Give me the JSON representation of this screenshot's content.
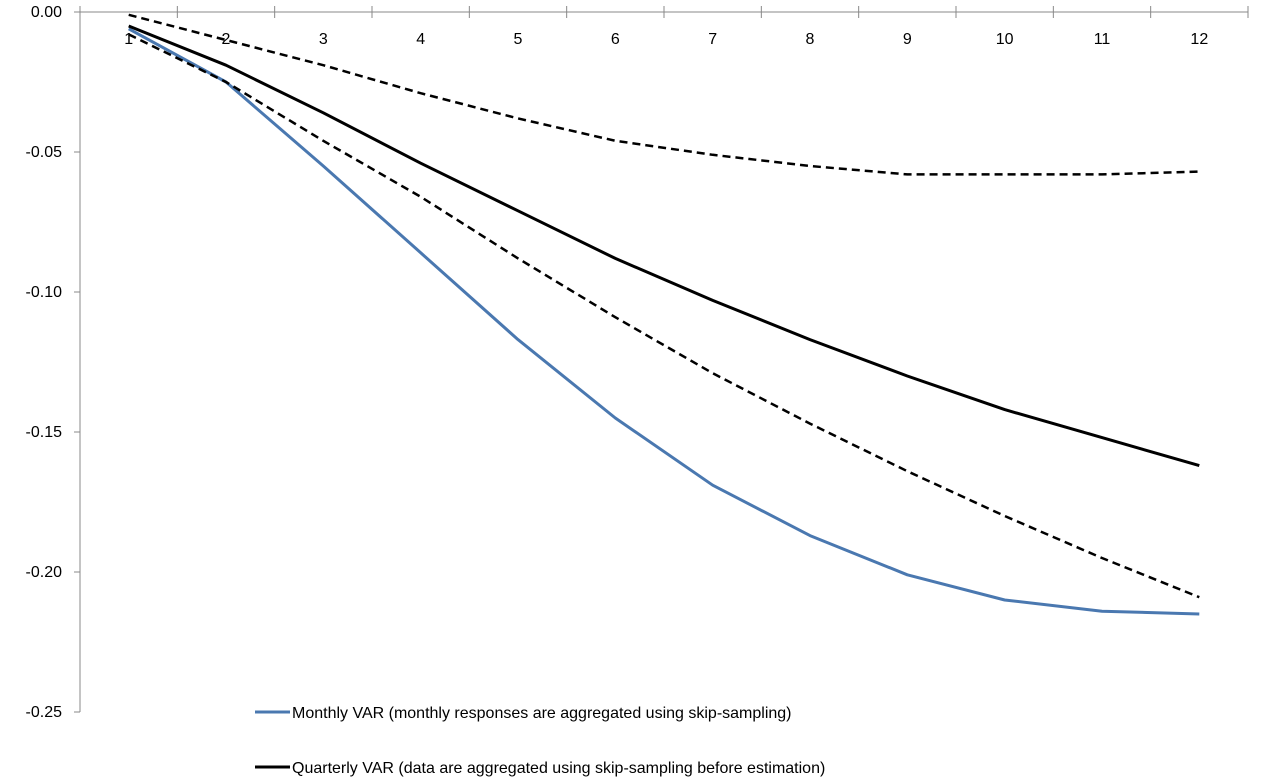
{
  "chart_data": {
    "type": "line",
    "title": "",
    "xlabel": "",
    "ylabel": "",
    "x": [
      1,
      2,
      3,
      4,
      5,
      6,
      7,
      8,
      9,
      10,
      11,
      12
    ],
    "x_tick_labels": [
      "1",
      "2",
      "3",
      "4",
      "5",
      "6",
      "7",
      "8",
      "9",
      "10",
      "11",
      "12"
    ],
    "y_tick_labels": [
      "0.00",
      "-0.05",
      "-0.10",
      "-0.15",
      "-0.20",
      "-0.25"
    ],
    "y_ticks": [
      0.0,
      -0.05,
      -0.1,
      -0.15,
      -0.2,
      -0.25
    ],
    "ylim": [
      -0.25,
      0.0
    ],
    "x_axis_position": "top",
    "grid": false,
    "legend_position": "bottom",
    "series": [
      {
        "name": "Monthly VAR (monthly responses are aggregated using skip-sampling)",
        "color": "#4a78b0",
        "style": "solid",
        "values": [
          -0.006,
          -0.025,
          -0.055,
          -0.086,
          -0.117,
          -0.145,
          -0.169,
          -0.187,
          -0.201,
          -0.21,
          -0.214,
          -0.215
        ]
      },
      {
        "name": "Quarterly VAR (data are aggregated using skip-sampling before estimation)",
        "color": "#000000",
        "style": "solid",
        "values": [
          -0.005,
          -0.019,
          -0.036,
          -0.054,
          -0.071,
          -0.088,
          -0.103,
          -0.117,
          -0.13,
          -0.142,
          -0.152,
          -0.162
        ]
      },
      {
        "color": "#000000",
        "style": "dashed",
        "values": [
          -0.001,
          -0.01,
          -0.019,
          -0.029,
          -0.038,
          -0.046,
          -0.051,
          -0.055,
          -0.058,
          -0.058,
          -0.058,
          -0.057
        ]
      },
      {
        "color": "#000000",
        "style": "dashed",
        "values": [
          -0.008,
          -0.025,
          -0.046,
          -0.066,
          -0.088,
          -0.109,
          -0.129,
          -0.147,
          -0.164,
          -0.18,
          -0.195,
          -0.209
        ]
      }
    ]
  }
}
